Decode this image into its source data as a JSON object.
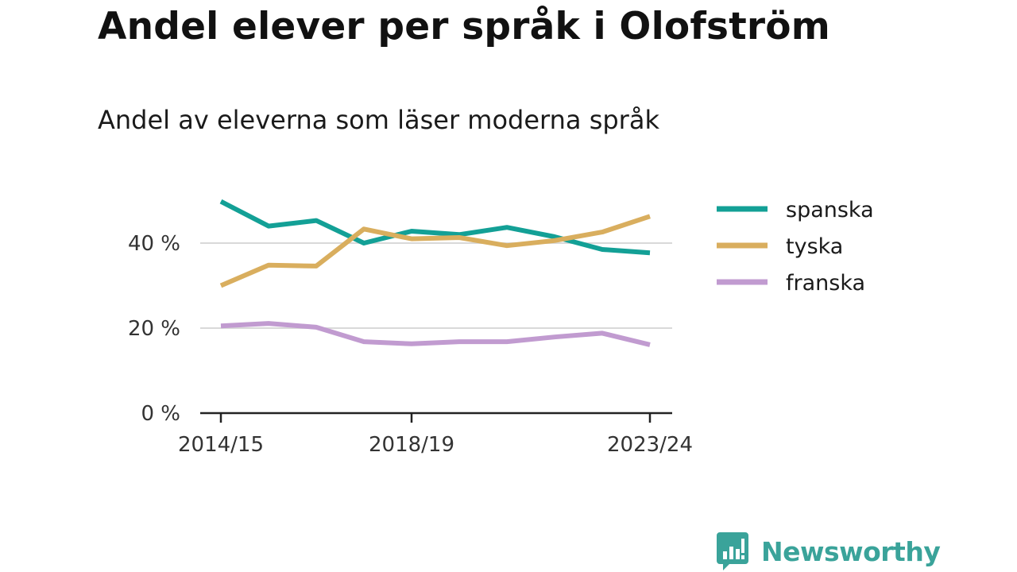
{
  "header": {
    "title": "Andel elever per språk i Olofström",
    "subtitle": "Andel av eleverna som läser moderna språk"
  },
  "chart_data": {
    "type": "line",
    "title": "Andel elever per språk i Olofström",
    "subtitle": "Andel av eleverna som läser moderna språk",
    "xlabel": "",
    "ylabel": "",
    "x": [
      "2014/15",
      "2015/16",
      "2016/17",
      "2017/18",
      "2018/19",
      "2019/20",
      "2020/21",
      "2021/22",
      "2022/23",
      "2023/24"
    ],
    "x_tick_labels": [
      "2014/15",
      "2018/19",
      "2023/24"
    ],
    "y_ticks": [
      0,
      20,
      40
    ],
    "y_tick_labels": [
      "0 %",
      "20 %",
      "40 %"
    ],
    "ylim": [
      0,
      50
    ],
    "grid": true,
    "legend_position": "right",
    "series": [
      {
        "name": "spanska",
        "color": "#13a096",
        "values": [
          49.8,
          44.0,
          45.3,
          40.0,
          42.8,
          42.0,
          43.7,
          41.5,
          38.5,
          37.7
        ]
      },
      {
        "name": "tyska",
        "color": "#d9ae5e",
        "values": [
          30.0,
          34.8,
          34.6,
          43.3,
          41.0,
          41.3,
          39.4,
          40.6,
          42.6,
          46.3
        ]
      },
      {
        "name": "franska",
        "color": "#c19bd0",
        "values": [
          20.5,
          21.1,
          20.2,
          16.8,
          16.3,
          16.8,
          16.8,
          17.9,
          18.8,
          16.1
        ]
      }
    ]
  },
  "branding": {
    "logo_text": "Newsworthy",
    "logo_icon": "bar-chart-speech-bubble-icon",
    "logo_color": "#3aa39a"
  }
}
